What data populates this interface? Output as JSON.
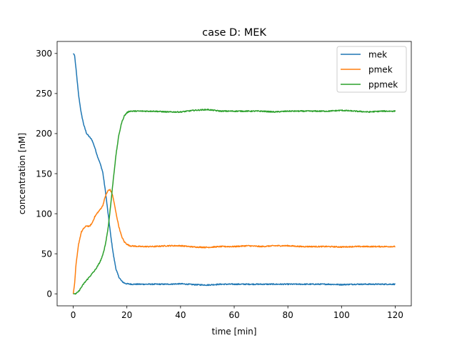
{
  "chart_data": {
    "type": "line",
    "title": "case D: MEK",
    "xlabel": "time [min]",
    "ylabel": "concentration [nM]",
    "xlim": [
      -6,
      126
    ],
    "ylim": [
      -15,
      315
    ],
    "xticks": [
      0,
      20,
      40,
      60,
      80,
      100,
      120
    ],
    "yticks": [
      0,
      50,
      100,
      150,
      200,
      250,
      300
    ],
    "xtick_labels": [
      "0",
      "20",
      "40",
      "60",
      "80",
      "100",
      "120"
    ],
    "ytick_labels": [
      "0",
      "50",
      "100",
      "150",
      "200",
      "250",
      "300"
    ],
    "grid": false,
    "legend_position": "top-right",
    "series": [
      {
        "name": "mek",
        "color": "#1f77b4",
        "points": [
          [
            0,
            300
          ],
          [
            0.5,
            298
          ],
          [
            1,
            282
          ],
          [
            2,
            248
          ],
          [
            3,
            225
          ],
          [
            4,
            210
          ],
          [
            5,
            200
          ],
          [
            6,
            196
          ],
          [
            7,
            192
          ],
          [
            8,
            183
          ],
          [
            9,
            172
          ],
          [
            10,
            163
          ],
          [
            11,
            152
          ],
          [
            12,
            128
          ],
          [
            13,
            100
          ],
          [
            14,
            72
          ],
          [
            15,
            48
          ],
          [
            16,
            30
          ],
          [
            17,
            21
          ],
          [
            18,
            16
          ],
          [
            19,
            13.5
          ],
          [
            20,
            12.5
          ],
          [
            22,
            12
          ],
          [
            25,
            12
          ],
          [
            30,
            12
          ],
          [
            35,
            12
          ],
          [
            40,
            12.5
          ],
          [
            45,
            11.5
          ],
          [
            50,
            11
          ],
          [
            55,
            12
          ],
          [
            60,
            12
          ],
          [
            65,
            12
          ],
          [
            70,
            12
          ],
          [
            75,
            12
          ],
          [
            80,
            12
          ],
          [
            85,
            12
          ],
          [
            90,
            12
          ],
          [
            95,
            12
          ],
          [
            100,
            11.5
          ],
          [
            105,
            12
          ],
          [
            110,
            12
          ],
          [
            115,
            12
          ],
          [
            120,
            12
          ]
        ]
      },
      {
        "name": "pmek",
        "color": "#ff7f0e",
        "points": [
          [
            0,
            0
          ],
          [
            0.5,
            12
          ],
          [
            1,
            35
          ],
          [
            2,
            62
          ],
          [
            3,
            77
          ],
          [
            4,
            82
          ],
          [
            5,
            85
          ],
          [
            6,
            84
          ],
          [
            7,
            88
          ],
          [
            8,
            96
          ],
          [
            9,
            101
          ],
          [
            10,
            105
          ],
          [
            11,
            110
          ],
          [
            12,
            122
          ],
          [
            13,
            129
          ],
          [
            13.7,
            130
          ],
          [
            14.5,
            125
          ],
          [
            15,
            118
          ],
          [
            16,
            100
          ],
          [
            17,
            84
          ],
          [
            18,
            72
          ],
          [
            19,
            65
          ],
          [
            20,
            62
          ],
          [
            21,
            60
          ],
          [
            25,
            59
          ],
          [
            30,
            59
          ],
          [
            35,
            60
          ],
          [
            40,
            60
          ],
          [
            45,
            58.5
          ],
          [
            50,
            58
          ],
          [
            55,
            59
          ],
          [
            60,
            59
          ],
          [
            65,
            60
          ],
          [
            70,
            59
          ],
          [
            75,
            60
          ],
          [
            80,
            60
          ],
          [
            85,
            59
          ],
          [
            90,
            59
          ],
          [
            95,
            59
          ],
          [
            100,
            58.5
          ],
          [
            105,
            59
          ],
          [
            110,
            59
          ],
          [
            115,
            59
          ],
          [
            120,
            59
          ]
        ]
      },
      {
        "name": "ppmek",
        "color": "#2ca02c",
        "points": [
          [
            0,
            0
          ],
          [
            1,
            0
          ],
          [
            2,
            3
          ],
          [
            3,
            8
          ],
          [
            4,
            13
          ],
          [
            5,
            17
          ],
          [
            6,
            21
          ],
          [
            7,
            25
          ],
          [
            8,
            29
          ],
          [
            9,
            34
          ],
          [
            10,
            40
          ],
          [
            11,
            48
          ],
          [
            12,
            62
          ],
          [
            13,
            82
          ],
          [
            14,
            112
          ],
          [
            15,
            145
          ],
          [
            16,
            175
          ],
          [
            17,
            198
          ],
          [
            18,
            213
          ],
          [
            19,
            222
          ],
          [
            20,
            226
          ],
          [
            21,
            228
          ],
          [
            25,
            228
          ],
          [
            30,
            228
          ],
          [
            35,
            227
          ],
          [
            40,
            227
          ],
          [
            45,
            229
          ],
          [
            50,
            230
          ],
          [
            55,
            228
          ],
          [
            60,
            228
          ],
          [
            65,
            228
          ],
          [
            70,
            228
          ],
          [
            75,
            227
          ],
          [
            80,
            228
          ],
          [
            85,
            228
          ],
          [
            90,
            228
          ],
          [
            95,
            228
          ],
          [
            100,
            229
          ],
          [
            105,
            228
          ],
          [
            110,
            227
          ],
          [
            115,
            228
          ],
          [
            120,
            228
          ]
        ]
      }
    ]
  }
}
